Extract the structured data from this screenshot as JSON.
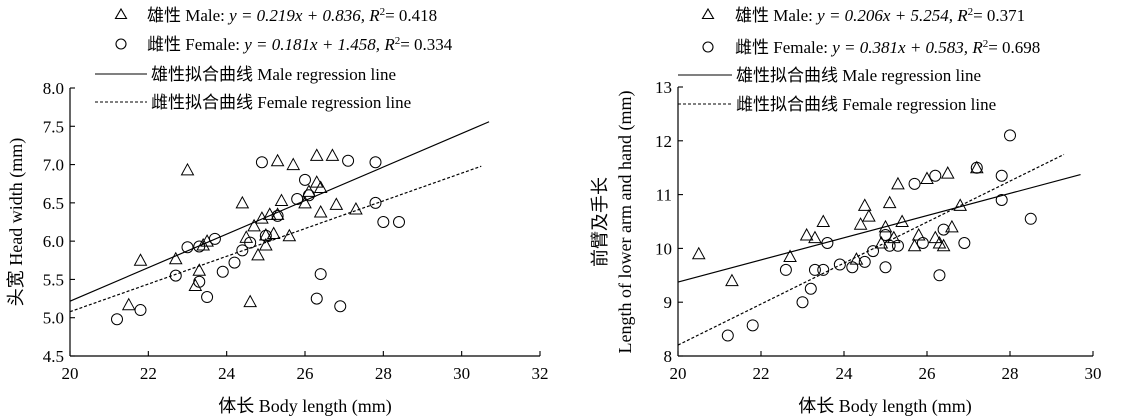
{
  "chart_data": [
    {
      "type": "scatter",
      "xlabel": "体长 Body length (mm)",
      "ylabel": "头宽 Head width (mm)",
      "xlim": [
        20,
        32
      ],
      "ylim": [
        4.5,
        8.0
      ],
      "xticks": [
        20,
        22,
        24,
        26,
        28,
        30,
        32
      ],
      "yticks": [
        4.5,
        5.0,
        5.5,
        6.0,
        6.5,
        7.0,
        7.5,
        8.0
      ],
      "ytick_labels": [
        "4.5",
        "5.0",
        "5.5",
        "6.0",
        "6.5",
        "7.0",
        "7.5",
        "8.0"
      ],
      "legend": {
        "placement": "top-left (above plot)",
        "male": {
          "prefix": "雄性 Male: ",
          "eq": "y = 0.219x + 0.836, ",
          "r2": "= 0.418"
        },
        "female": {
          "prefix": "雌性 Female: ",
          "eq": "y = 0.181x + 1.458, ",
          "r2": "= 0.334"
        },
        "male_line": "雄性拟合曲线 Male regression line",
        "female_line": "雌性拟合曲线 Female regression line"
      },
      "series": [
        {
          "name": "雄性 Male",
          "marker": "triangle",
          "points": [
            [
              21.8,
              5.75
            ],
            [
              21.5,
              5.17
            ],
            [
              22.7,
              5.77
            ],
            [
              23.0,
              6.93
            ],
            [
              23.2,
              5.42
            ],
            [
              23.3,
              5.62
            ],
            [
              23.4,
              5.95
            ],
            [
              23.5,
              6.0
            ],
            [
              24.4,
              6.5
            ],
            [
              24.5,
              6.05
            ],
            [
              24.6,
              5.21
            ],
            [
              24.7,
              6.2
            ],
            [
              24.8,
              5.82
            ],
            [
              24.9,
              6.3
            ],
            [
              25.0,
              5.95
            ],
            [
              25.0,
              6.08
            ],
            [
              25.1,
              6.35
            ],
            [
              25.2,
              6.1
            ],
            [
              25.3,
              6.35
            ],
            [
              25.3,
              7.05
            ],
            [
              25.4,
              6.53
            ],
            [
              25.6,
              6.07
            ],
            [
              25.7,
              7.0
            ],
            [
              26.0,
              6.5
            ],
            [
              26.1,
              6.65
            ],
            [
              26.3,
              6.77
            ],
            [
              26.3,
              7.12
            ],
            [
              26.4,
              6.7
            ],
            [
              26.4,
              6.38
            ],
            [
              26.7,
              7.12
            ],
            [
              26.8,
              6.48
            ],
            [
              27.3,
              6.42
            ]
          ]
        },
        {
          "name": "雌性 Female",
          "marker": "circle",
          "points": [
            [
              21.2,
              4.98
            ],
            [
              21.8,
              5.1
            ],
            [
              22.7,
              5.55
            ],
            [
              23.0,
              5.92
            ],
            [
              23.3,
              5.93
            ],
            [
              23.3,
              5.47
            ],
            [
              23.5,
              5.27
            ],
            [
              23.7,
              6.03
            ],
            [
              23.9,
              5.6
            ],
            [
              24.2,
              5.72
            ],
            [
              24.4,
              5.88
            ],
            [
              24.6,
              5.98
            ],
            [
              24.9,
              7.03
            ],
            [
              25.0,
              6.07
            ],
            [
              25.3,
              6.33
            ],
            [
              25.8,
              6.55
            ],
            [
              26.0,
              6.8
            ],
            [
              26.1,
              6.6
            ],
            [
              26.3,
              5.25
            ],
            [
              26.4,
              5.57
            ],
            [
              26.9,
              5.15
            ],
            [
              27.1,
              7.05
            ],
            [
              27.8,
              7.03
            ],
            [
              27.8,
              6.5
            ],
            [
              28.0,
              6.25
            ],
            [
              28.4,
              6.25
            ]
          ]
        }
      ],
      "regression": [
        {
          "name": "Male regression line",
          "style": "solid",
          "slope": 0.219,
          "intercept": 0.836,
          "x": [
            20.0,
            30.7
          ]
        },
        {
          "name": "Female regression line",
          "style": "dashed",
          "slope": 0.181,
          "intercept": 1.458,
          "x": [
            20.0,
            30.5
          ]
        }
      ]
    },
    {
      "type": "scatter",
      "xlabel": "体长 Body length (mm)",
      "ylabel_cn": "前臂及手长",
      "ylabel_en": "Length of lower arm and hand (mm)",
      "xlim": [
        20,
        30
      ],
      "ylim": [
        8,
        13
      ],
      "xticks": [
        20,
        22,
        24,
        26,
        28,
        30
      ],
      "yticks": [
        8,
        9,
        10,
        11,
        12,
        13
      ],
      "ytick_labels": [
        "8",
        "9",
        "10",
        "11",
        "12",
        "13"
      ],
      "legend": {
        "placement": "top-left (above plot)",
        "male": {
          "prefix": "雄性 Male: ",
          "eq": "y = 0.206x + 5.254, ",
          "r2": "= 0.371"
        },
        "female": {
          "prefix": "雌性 Female: ",
          "eq": "y = 0.381x + 0.583, ",
          "r2": "= 0.698"
        },
        "male_line": "雄性拟合曲线 Male regression line",
        "female_line": "雌性拟合曲线 Female regression line"
      },
      "series": [
        {
          "name": "雄性 Male",
          "marker": "triangle",
          "points": [
            [
              20.5,
              9.9
            ],
            [
              21.3,
              9.4
            ],
            [
              22.7,
              9.85
            ],
            [
              23.1,
              10.25
            ],
            [
              23.3,
              10.2
            ],
            [
              23.5,
              10.5
            ],
            [
              24.3,
              9.8
            ],
            [
              24.4,
              10.45
            ],
            [
              24.5,
              10.8
            ],
            [
              24.6,
              10.6
            ],
            [
              24.9,
              10.1
            ],
            [
              25.0,
              10.4
            ],
            [
              25.1,
              10.85
            ],
            [
              25.2,
              10.2
            ],
            [
              25.3,
              11.2
            ],
            [
              25.4,
              10.5
            ],
            [
              25.7,
              10.05
            ],
            [
              25.8,
              10.25
            ],
            [
              26.0,
              11.3
            ],
            [
              26.2,
              10.2
            ],
            [
              26.3,
              10.1
            ],
            [
              26.4,
              10.05
            ],
            [
              26.5,
              11.4
            ],
            [
              26.6,
              10.4
            ],
            [
              26.8,
              10.8
            ],
            [
              27.2,
              11.5
            ]
          ]
        },
        {
          "name": "雌性 Female",
          "marker": "circle",
          "points": [
            [
              21.2,
              8.38
            ],
            [
              21.8,
              8.57
            ],
            [
              22.6,
              9.6
            ],
            [
              23.0,
              9.0
            ],
            [
              23.2,
              9.25
            ],
            [
              23.3,
              9.6
            ],
            [
              23.5,
              9.6
            ],
            [
              23.6,
              10.1
            ],
            [
              23.9,
              9.7
            ],
            [
              24.2,
              9.65
            ],
            [
              24.5,
              9.75
            ],
            [
              24.7,
              9.95
            ],
            [
              25.0,
              9.65
            ],
            [
              25.0,
              10.25
            ],
            [
              25.1,
              10.05
            ],
            [
              25.3,
              10.05
            ],
            [
              25.7,
              11.2
            ],
            [
              25.9,
              10.1
            ],
            [
              26.2,
              11.35
            ],
            [
              26.3,
              9.5
            ],
            [
              26.4,
              10.35
            ],
            [
              26.9,
              10.1
            ],
            [
              27.2,
              11.5
            ],
            [
              27.8,
              11.35
            ],
            [
              27.8,
              10.9
            ],
            [
              28.0,
              12.1
            ],
            [
              28.5,
              10.55
            ]
          ]
        }
      ],
      "regression": [
        {
          "name": "Male regression line",
          "style": "solid",
          "slope": 0.206,
          "intercept": 5.254,
          "x": [
            20.0,
            29.7
          ]
        },
        {
          "name": "Female regression line",
          "style": "dashed",
          "slope": 0.381,
          "intercept": 0.583,
          "x": [
            20.0,
            29.3
          ]
        }
      ]
    }
  ]
}
